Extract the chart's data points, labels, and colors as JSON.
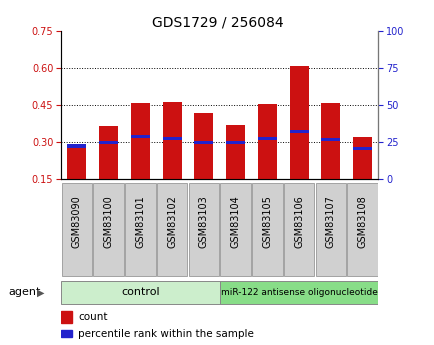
{
  "title": "GDS1729 / 256084",
  "samples": [
    "GSM83090",
    "GSM83100",
    "GSM83101",
    "GSM83102",
    "GSM83103",
    "GSM83104",
    "GSM83105",
    "GSM83106",
    "GSM83107",
    "GSM83108"
  ],
  "count_values": [
    0.285,
    0.365,
    0.46,
    0.465,
    0.42,
    0.37,
    0.455,
    0.61,
    0.46,
    0.32
  ],
  "percentile_values": [
    0.285,
    0.3,
    0.325,
    0.315,
    0.3,
    0.3,
    0.315,
    0.345,
    0.31,
    0.275
  ],
  "bar_bottom": 0.15,
  "ylim_left": [
    0.15,
    0.75
  ],
  "ylim_right": [
    0,
    100
  ],
  "yticks_left": [
    0.15,
    0.3,
    0.45,
    0.6,
    0.75
  ],
  "yticks_right": [
    0,
    25,
    50,
    75,
    100
  ],
  "count_color": "#cc1111",
  "percentile_color": "#2222cc",
  "control_label": "control",
  "treatment_label": "miR-122 antisense oligonucleotide",
  "control_color": "#cceecc",
  "treatment_color": "#88dd88",
  "agent_label": "agent",
  "legend_count": "count",
  "legend_percentile": "percentile rank within the sample",
  "bar_width": 0.6,
  "title_fontsize": 10,
  "tick_fontsize": 7,
  "n_control": 5,
  "n_treatment": 5
}
